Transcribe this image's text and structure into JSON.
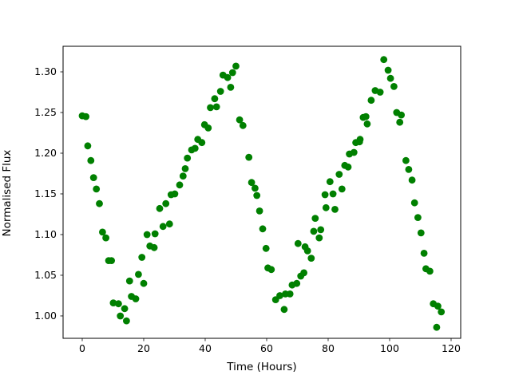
{
  "figure": {
    "background": "#ffffff"
  },
  "chart_data": {
    "type": "scatter",
    "title": "",
    "xlabel": "Time (Hours)",
    "ylabel": "Normalised Flux",
    "legend": "none",
    "grid": false,
    "marker_color": "#008000",
    "marker_radius_px": 4.4,
    "xlim": [
      -6.23,
      123.12
    ],
    "ylim": [
      0.9725,
      1.3314
    ],
    "x_ticks": [
      0,
      20,
      40,
      60,
      80,
      100,
      120
    ],
    "x_tick_labels": [
      "0",
      "20",
      "40",
      "60",
      "80",
      "100",
      "120"
    ],
    "y_ticks": [
      1.0,
      1.05,
      1.1,
      1.15,
      1.2,
      1.25,
      1.3
    ],
    "y_tick_labels": [
      "1.00",
      "1.05",
      "1.10",
      "1.15",
      "1.20",
      "1.25",
      "1.30"
    ],
    "series": [
      {
        "name": "normalised-flux-vs-time",
        "points": [
          [
            0.0,
            1.246
          ],
          [
            1.2,
            1.245
          ],
          [
            1.8,
            1.209
          ],
          [
            2.8,
            1.191
          ],
          [
            3.7,
            1.17
          ],
          [
            4.6,
            1.156
          ],
          [
            5.6,
            1.138
          ],
          [
            6.6,
            1.103
          ],
          [
            7.7,
            1.096
          ],
          [
            8.6,
            1.068
          ],
          [
            9.5,
            1.068
          ],
          [
            10.1,
            1.016
          ],
          [
            11.8,
            1.015
          ],
          [
            12.4,
            1.0
          ],
          [
            13.8,
            1.009
          ],
          [
            14.4,
            0.994
          ],
          [
            15.4,
            1.043
          ],
          [
            16.0,
            1.024
          ],
          [
            17.4,
            1.021
          ],
          [
            18.3,
            1.051
          ],
          [
            19.4,
            1.072
          ],
          [
            20.0,
            1.04
          ],
          [
            21.1,
            1.1
          ],
          [
            22.0,
            1.086
          ],
          [
            23.4,
            1.084
          ],
          [
            23.7,
            1.101
          ],
          [
            25.2,
            1.132
          ],
          [
            26.3,
            1.11
          ],
          [
            27.2,
            1.138
          ],
          [
            28.4,
            1.113
          ],
          [
            28.9,
            1.149
          ],
          [
            30.1,
            1.15
          ],
          [
            31.7,
            1.161
          ],
          [
            32.8,
            1.172
          ],
          [
            33.5,
            1.181
          ],
          [
            34.2,
            1.194
          ],
          [
            35.6,
            1.204
          ],
          [
            36.7,
            1.206
          ],
          [
            37.6,
            1.217
          ],
          [
            38.9,
            1.213
          ],
          [
            39.8,
            1.235
          ],
          [
            41.0,
            1.231
          ],
          [
            41.7,
            1.256
          ],
          [
            43.1,
            1.267
          ],
          [
            43.7,
            1.257
          ],
          [
            45.0,
            1.276
          ],
          [
            45.8,
            1.296
          ],
          [
            47.3,
            1.293
          ],
          [
            48.3,
            1.281
          ],
          [
            48.9,
            1.299
          ],
          [
            50.0,
            1.307
          ],
          [
            51.2,
            1.241
          ],
          [
            52.3,
            1.234
          ],
          [
            54.2,
            1.195
          ],
          [
            55.1,
            1.164
          ],
          [
            56.2,
            1.157
          ],
          [
            56.8,
            1.148
          ],
          [
            57.7,
            1.129
          ],
          [
            58.7,
            1.107
          ],
          [
            59.8,
            1.083
          ],
          [
            60.4,
            1.059
          ],
          [
            61.5,
            1.057
          ],
          [
            62.9,
            1.02
          ],
          [
            64.3,
            1.025
          ],
          [
            65.7,
            1.008
          ],
          [
            66.1,
            1.027
          ],
          [
            67.6,
            1.027
          ],
          [
            68.3,
            1.038
          ],
          [
            69.8,
            1.04
          ],
          [
            70.2,
            1.089
          ],
          [
            71.1,
            1.049
          ],
          [
            72.1,
            1.053
          ],
          [
            72.5,
            1.085
          ],
          [
            73.3,
            1.08
          ],
          [
            74.5,
            1.071
          ],
          [
            75.3,
            1.104
          ],
          [
            75.8,
            1.12
          ],
          [
            77.1,
            1.096
          ],
          [
            77.6,
            1.106
          ],
          [
            79.0,
            1.149
          ],
          [
            79.3,
            1.133
          ],
          [
            80.6,
            1.165
          ],
          [
            81.6,
            1.15
          ],
          [
            82.2,
            1.131
          ],
          [
            83.6,
            1.174
          ],
          [
            84.5,
            1.156
          ],
          [
            85.4,
            1.185
          ],
          [
            86.5,
            1.183
          ],
          [
            86.9,
            1.199
          ],
          [
            88.4,
            1.201
          ],
          [
            89.0,
            1.213
          ],
          [
            90.2,
            1.214
          ],
          [
            90.4,
            1.217
          ],
          [
            91.4,
            1.244
          ],
          [
            92.3,
            1.245
          ],
          [
            92.7,
            1.236
          ],
          [
            94.0,
            1.265
          ],
          [
            95.3,
            1.277
          ],
          [
            96.9,
            1.275
          ],
          [
            98.1,
            1.315
          ],
          [
            99.5,
            1.302
          ],
          [
            100.3,
            1.292
          ],
          [
            101.4,
            1.282
          ],
          [
            102.3,
            1.25
          ],
          [
            103.3,
            1.238
          ],
          [
            103.8,
            1.247
          ],
          [
            105.3,
            1.191
          ],
          [
            106.2,
            1.18
          ],
          [
            107.3,
            1.167
          ],
          [
            108.1,
            1.139
          ],
          [
            109.2,
            1.121
          ],
          [
            110.2,
            1.102
          ],
          [
            111.2,
            1.077
          ],
          [
            111.8,
            1.058
          ],
          [
            113.1,
            1.055
          ],
          [
            114.2,
            1.015
          ],
          [
            115.3,
            0.986
          ],
          [
            115.7,
            1.012
          ],
          [
            116.8,
            1.005
          ]
        ]
      }
    ]
  }
}
